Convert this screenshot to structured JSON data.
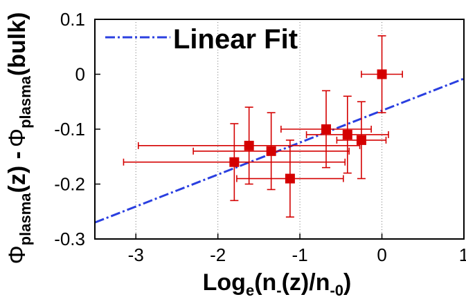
{
  "chart_data": {
    "type": "scatter",
    "xlim": [
      -3.5,
      1
    ],
    "ylim": [
      -0.3,
      0.1
    ],
    "x_ticks": [
      -3,
      -2,
      -1,
      0,
      1
    ],
    "x_tick_labels": [
      "-3",
      "-2",
      "-1",
      "0",
      "1"
    ],
    "y_ticks": [
      -0.3,
      -0.2,
      -0.1,
      0,
      0.1
    ],
    "y_tick_labels": [
      "-0.3",
      "-0.2",
      "-0.1",
      "0",
      "0.1"
    ],
    "xlabel": {
      "main": "Log",
      "sub1": "e",
      "mid1": "(n",
      "sub2": "-",
      "mid2": "(z)/n",
      "sub3": "-0",
      "end": ")"
    },
    "ylabel": {
      "phi1": "Φ",
      "sub1": "plasma",
      "mid": "(z) -",
      "phi2": "Φ",
      "sub2": "plasma",
      "end": "(bulk)"
    },
    "grid": {
      "vertical": true,
      "horizontal": false
    },
    "legend_placement": "top-left",
    "points": [
      {
        "x": -1.8,
        "y": -0.16,
        "xerr": 1.35,
        "yerr": 0.07
      },
      {
        "x": -1.62,
        "y": -0.13,
        "xerr": 1.35,
        "yerr": 0.07
      },
      {
        "x": -1.35,
        "y": -0.14,
        "xerr": 0.95,
        "yerr": 0.07
      },
      {
        "x": -1.12,
        "y": -0.19,
        "xerr": 0.65,
        "yerr": 0.07
      },
      {
        "x": -0.68,
        "y": -0.1,
        "xerr": 0.55,
        "yerr": 0.07
      },
      {
        "x": -0.42,
        "y": -0.11,
        "xerr": 0.5,
        "yerr": 0.07
      },
      {
        "x": -0.25,
        "y": -0.12,
        "xerr": 0.3,
        "yerr": 0.07
      },
      {
        "x": 0.0,
        "y": 0.0,
        "xerr": 0.25,
        "yerr": 0.07
      }
    ],
    "series": [
      {
        "name": "Linear Fit",
        "style": "dash-dot",
        "color": "#2a3fe0",
        "x": [
          -3.5,
          1
        ],
        "y": [
          -0.27,
          -0.008
        ]
      }
    ],
    "marker_color": "#d40000"
  }
}
